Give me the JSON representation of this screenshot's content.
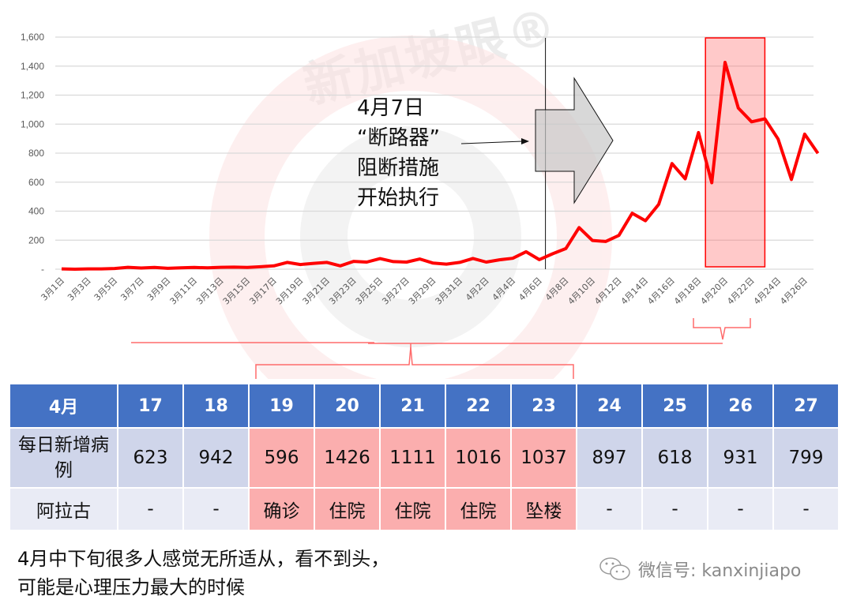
{
  "watermark": {
    "text": "新加坡眼®"
  },
  "chart_data": {
    "type": "line",
    "title": "",
    "xlabel": "",
    "ylabel": "",
    "ylim": [
      0,
      1600
    ],
    "yticks": [
      "-",
      "200",
      "400",
      "600",
      "800",
      "1,000",
      "1,200",
      "1,400",
      "1,600"
    ],
    "ytick_values": [
      0,
      200,
      400,
      600,
      800,
      1000,
      1200,
      1400,
      1600
    ],
    "grid": true,
    "series_color": "#ff0000",
    "x": [
      "3月1日",
      "3月2日",
      "3月3日",
      "3月4日",
      "3月5日",
      "3月6日",
      "3月7日",
      "3月8日",
      "3月9日",
      "3月10日",
      "3月11日",
      "3月12日",
      "3月13日",
      "3月14日",
      "3月15日",
      "3月16日",
      "3月17日",
      "3月18日",
      "3月19日",
      "3月20日",
      "3月21日",
      "3月22日",
      "3月23日",
      "3月24日",
      "3月25日",
      "3月26日",
      "3月27日",
      "3月28日",
      "3月29日",
      "3月30日",
      "3月31日",
      "4月1日",
      "4月2日",
      "4月3日",
      "4月4日",
      "4月5日",
      "4月6日",
      "4月7日",
      "4月8日",
      "4月9日",
      "4月10日",
      "4月11日",
      "4月12日",
      "4月13日",
      "4月14日",
      "4月15日",
      "4月16日",
      "4月17日",
      "4月18日",
      "4月19日",
      "4月20日",
      "4月21日",
      "4月22日",
      "4月23日",
      "4月24日",
      "4月25日",
      "4月26日",
      "4月27日"
    ],
    "xtick_labels": [
      "3月1日",
      "3月3日",
      "3月5日",
      "3月7日",
      "3月9日",
      "3月11日",
      "3月13日",
      "3月15日",
      "3月17日",
      "3月19日",
      "3月21日",
      "3月23日",
      "3月25日",
      "3月27日",
      "3月29日",
      "3月31日",
      "4月2日",
      "4月4日",
      "4月6日",
      "4月8日",
      "4月10日",
      "4月12日",
      "4月14日",
      "4月16日",
      "4月18日",
      "4月20日",
      "4月22日",
      "4月24日",
      "4月26日"
    ],
    "series": [
      {
        "name": "每日新增病例",
        "values": [
          2,
          0,
          2,
          2,
          5,
          13,
          8,
          12,
          6,
          10,
          12,
          9,
          13,
          14,
          12,
          17,
          23,
          47,
          32,
          40,
          47,
          23,
          54,
          49,
          73,
          52,
          49,
          70,
          42,
          35,
          47,
          74,
          49,
          65,
          75,
          120,
          66,
          106,
          142,
          287,
          198,
          191,
          233,
          386,
          334,
          447,
          728,
          623,
          942,
          596,
          1426,
          1111,
          1016,
          1037,
          897,
          618,
          931,
          799
        ]
      }
    ],
    "annotations": [
      {
        "type": "vline",
        "x": "4月7日"
      },
      {
        "type": "text",
        "lines": [
          "4月7日",
          "“断路器”",
          "阻断措施",
          "开始执行"
        ]
      },
      {
        "type": "arrow-shape",
        "label": "block-arrow-right"
      },
      {
        "type": "highlight-box",
        "from": "4月19日",
        "to": "4月23日",
        "color": "#ff0000"
      }
    ]
  },
  "table": {
    "header": [
      "4月",
      "17",
      "18",
      "19",
      "20",
      "21",
      "22",
      "23",
      "24",
      "25",
      "26",
      "27"
    ],
    "row_cases": {
      "label": "每日新增病例",
      "values": [
        "623",
        "942",
        "596",
        "1426",
        "1111",
        "1016",
        "1037",
        "897",
        "618",
        "931",
        "799"
      ]
    },
    "row_person": {
      "label": "阿拉古",
      "values": [
        "-",
        "-",
        "确诊",
        "住院",
        "住院",
        "住院",
        "坠楼",
        "-",
        "-",
        "-",
        "-"
      ]
    },
    "highlight_columns": [
      "19",
      "20",
      "21",
      "22",
      "23"
    ],
    "colors": {
      "header": "#4472c4",
      "row1": "#cfd5ea",
      "row2": "#e9ebf5",
      "highlight": "#fbaeae"
    }
  },
  "caption": {
    "line1": "4月中下旬很多人感觉无所适从，看不到头，",
    "line2": "可能是心理压力最大的时候"
  },
  "wechat": {
    "label": "微信号: kanxinjiapo",
    "icon": "wechat-icon"
  }
}
